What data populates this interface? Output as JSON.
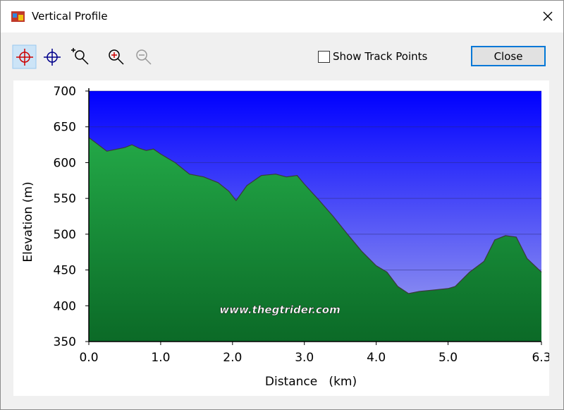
{
  "window": {
    "title": "Vertical Profile",
    "checkbox": "Show Track Points",
    "button": "Close"
  },
  "chart_data": {
    "type": "area",
    "x_label": "Distance   (km)",
    "y_label": "Elevation (m)",
    "annotation": "www.thegtrider.com",
    "x": [
      0.0,
      0.25,
      0.5,
      0.6,
      0.7,
      0.8,
      0.9,
      1.0,
      1.2,
      1.4,
      1.6,
      1.8,
      1.95,
      2.05,
      2.2,
      2.4,
      2.6,
      2.75,
      2.9,
      3.0,
      3.2,
      3.4,
      3.6,
      3.8,
      4.0,
      4.15,
      4.3,
      4.45,
      4.6,
      4.8,
      5.0,
      5.1,
      5.3,
      5.5,
      5.65,
      5.8,
      5.95,
      6.1,
      6.3
    ],
    "values": [
      635,
      616,
      621,
      625,
      620,
      617,
      619,
      612,
      600,
      584,
      580,
      572,
      560,
      547,
      568,
      582,
      584,
      580,
      582,
      570,
      548,
      525,
      500,
      476,
      456,
      447,
      427,
      417,
      420,
      422,
      424,
      427,
      447,
      462,
      492,
      498,
      496,
      466,
      447
    ],
    "color": "#1f9a3e",
    "xlim": [
      0,
      6.3
    ],
    "ylim": [
      350,
      700
    ],
    "xticks": [
      {
        "value": 0,
        "label": "0.0"
      },
      {
        "value": 1,
        "label": "1.0"
      },
      {
        "value": 2,
        "label": "2.0"
      },
      {
        "value": 3,
        "label": "3.0"
      },
      {
        "value": 4,
        "label": "4.0"
      },
      {
        "value": 5,
        "label": "5.0"
      },
      6.3
    ],
    "yticks": [
      350,
      400,
      450,
      500,
      550,
      600,
      650,
      700
    ],
    "grid": true
  }
}
